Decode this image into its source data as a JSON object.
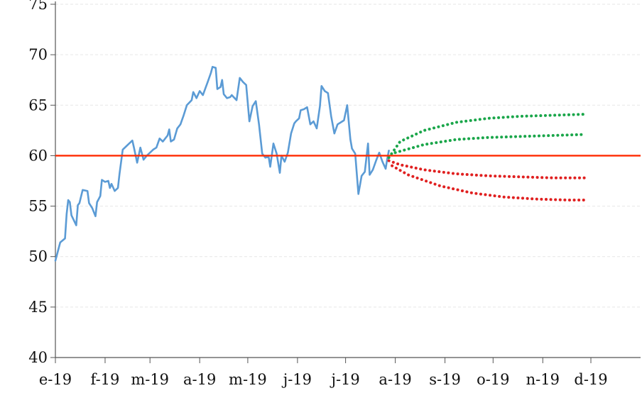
{
  "chart_data": {
    "type": "line",
    "title": "",
    "xlabel": "",
    "ylabel": "",
    "ylim": [
      40,
      75
    ],
    "y_ticks": [
      40,
      45,
      50,
      55,
      60,
      65,
      70,
      75
    ],
    "x_ticks": [
      {
        "label": "e-19",
        "x": 0
      },
      {
        "label": "f-19",
        "x": 31
      },
      {
        "label": "m-19",
        "x": 59
      },
      {
        "label": "a-19",
        "x": 90
      },
      {
        "label": "m-19",
        "x": 120
      },
      {
        "label": "j-19",
        "x": 151
      },
      {
        "label": "j-19",
        "x": 181
      },
      {
        "label": "a-19",
        "x": 212
      },
      {
        "label": "s-19",
        "x": 243
      },
      {
        "label": "o-19",
        "x": 273
      },
      {
        "label": "n-19",
        "x": 304
      },
      {
        "label": "d-19",
        "x": 334
      }
    ],
    "xlim": [
      0,
      365
    ],
    "grid": true,
    "colors": {
      "series": "#5b9bd5",
      "threshold": "#ff2a00",
      "upper": "#1aa64a",
      "lower": "#e02020",
      "grid": "#e6e6e6",
      "axis": "#555555"
    },
    "reference_line": {
      "y": 60
    },
    "series": [
      {
        "style": "solid",
        "color": "#5b9bd5",
        "points": [
          [
            0,
            49.6
          ],
          [
            1,
            50.2
          ],
          [
            3,
            51.4
          ],
          [
            6,
            51.8
          ],
          [
            7,
            54.2
          ],
          [
            8,
            55.6
          ],
          [
            9,
            55.4
          ],
          [
            10,
            54.1
          ],
          [
            13,
            53.1
          ],
          [
            14,
            55.1
          ],
          [
            15,
            55.3
          ],
          [
            17,
            56.6
          ],
          [
            20,
            56.5
          ],
          [
            21,
            55.3
          ],
          [
            23,
            54.8
          ],
          [
            25,
            54.0
          ],
          [
            26,
            55.4
          ],
          [
            28,
            56.0
          ],
          [
            29,
            57.6
          ],
          [
            31,
            57.4
          ],
          [
            33,
            57.5
          ],
          [
            34,
            56.8
          ],
          [
            35,
            57.2
          ],
          [
            37,
            56.5
          ],
          [
            39,
            56.8
          ],
          [
            40,
            58.2
          ],
          [
            42,
            60.6
          ],
          [
            44,
            60.9
          ],
          [
            46,
            61.2
          ],
          [
            48,
            61.5
          ],
          [
            49,
            60.8
          ],
          [
            51,
            59.3
          ],
          [
            53,
            60.8
          ],
          [
            55,
            59.6
          ],
          [
            57,
            60.0
          ],
          [
            59,
            60.3
          ],
          [
            61,
            60.6
          ],
          [
            63,
            60.8
          ],
          [
            65,
            61.7
          ],
          [
            67,
            61.4
          ],
          [
            70,
            62.0
          ],
          [
            71,
            62.6
          ],
          [
            72,
            61.4
          ],
          [
            74,
            61.6
          ],
          [
            76,
            62.7
          ],
          [
            78,
            63.1
          ],
          [
            80,
            64.0
          ],
          [
            82,
            65.0
          ],
          [
            85,
            65.5
          ],
          [
            86,
            66.3
          ],
          [
            88,
            65.7
          ],
          [
            90,
            66.4
          ],
          [
            92,
            66.0
          ],
          [
            95,
            67.3
          ],
          [
            97,
            68.2
          ],
          [
            98,
            68.8
          ],
          [
            100,
            68.7
          ],
          [
            101,
            66.6
          ],
          [
            103,
            66.8
          ],
          [
            104,
            67.5
          ],
          [
            105,
            66.1
          ],
          [
            107,
            65.7
          ],
          [
            109,
            65.8
          ],
          [
            110,
            66.0
          ],
          [
            113,
            65.5
          ],
          [
            115,
            67.7
          ],
          [
            117,
            67.3
          ],
          [
            119,
            67.0
          ],
          [
            121,
            63.4
          ],
          [
            123,
            64.9
          ],
          [
            125,
            65.4
          ],
          [
            127,
            63.1
          ],
          [
            129,
            60.2
          ],
          [
            131,
            59.8
          ],
          [
            133,
            59.9
          ],
          [
            134,
            58.9
          ],
          [
            136,
            61.2
          ],
          [
            138,
            60.2
          ],
          [
            140,
            58.3
          ],
          [
            141,
            60.0
          ],
          [
            143,
            59.4
          ],
          [
            145,
            60.3
          ],
          [
            147,
            62.2
          ],
          [
            149,
            63.2
          ],
          [
            150,
            63.4
          ],
          [
            152,
            63.7
          ],
          [
            153,
            64.5
          ],
          [
            155,
            64.6
          ],
          [
            157,
            64.8
          ],
          [
            159,
            63.1
          ],
          [
            161,
            63.4
          ],
          [
            163,
            62.7
          ],
          [
            165,
            64.9
          ],
          [
            166,
            66.9
          ],
          [
            168,
            66.4
          ],
          [
            170,
            66.2
          ],
          [
            172,
            63.9
          ],
          [
            174,
            62.2
          ],
          [
            176,
            63.1
          ],
          [
            178,
            63.3
          ],
          [
            180,
            63.5
          ],
          [
            182,
            65.0
          ],
          [
            184,
            61.6
          ],
          [
            185,
            60.7
          ],
          [
            187,
            60.2
          ],
          [
            189,
            56.2
          ],
          [
            191,
            58.0
          ],
          [
            193,
            58.4
          ],
          [
            195,
            61.2
          ],
          [
            196,
            58.1
          ],
          [
            198,
            58.6
          ],
          [
            200,
            59.5
          ],
          [
            202,
            60.3
          ],
          [
            204,
            59.4
          ],
          [
            206,
            58.7
          ],
          [
            207,
            59.7
          ],
          [
            208,
            60.5
          ]
        ]
      },
      {
        "style": "dotted",
        "color": "#1aa64a",
        "points": [
          [
            208,
            59.8
          ],
          [
            215,
            61.4
          ],
          [
            230,
            62.5
          ],
          [
            250,
            63.3
          ],
          [
            270,
            63.7
          ],
          [
            290,
            63.9
          ],
          [
            310,
            64.0
          ],
          [
            330,
            64.1
          ]
        ]
      },
      {
        "style": "dotted",
        "color": "#1aa64a",
        "points": [
          [
            212,
            60.3
          ],
          [
            230,
            61.1
          ],
          [
            250,
            61.6
          ],
          [
            270,
            61.8
          ],
          [
            290,
            61.9
          ],
          [
            310,
            62.0
          ],
          [
            330,
            62.1
          ]
        ]
      },
      {
        "style": "dotted",
        "color": "#e02020",
        "points": [
          [
            208,
            59.5
          ],
          [
            215,
            59.1
          ],
          [
            230,
            58.6
          ],
          [
            250,
            58.2
          ],
          [
            270,
            58.0
          ],
          [
            290,
            57.9
          ],
          [
            310,
            57.8
          ],
          [
            330,
            57.8
          ]
        ]
      },
      {
        "style": "dotted",
        "color": "#e02020",
        "points": [
          [
            210,
            59.0
          ],
          [
            220,
            58.1
          ],
          [
            240,
            57.0
          ],
          [
            260,
            56.3
          ],
          [
            280,
            55.9
          ],
          [
            300,
            55.7
          ],
          [
            320,
            55.6
          ],
          [
            330,
            55.6
          ]
        ]
      }
    ]
  }
}
